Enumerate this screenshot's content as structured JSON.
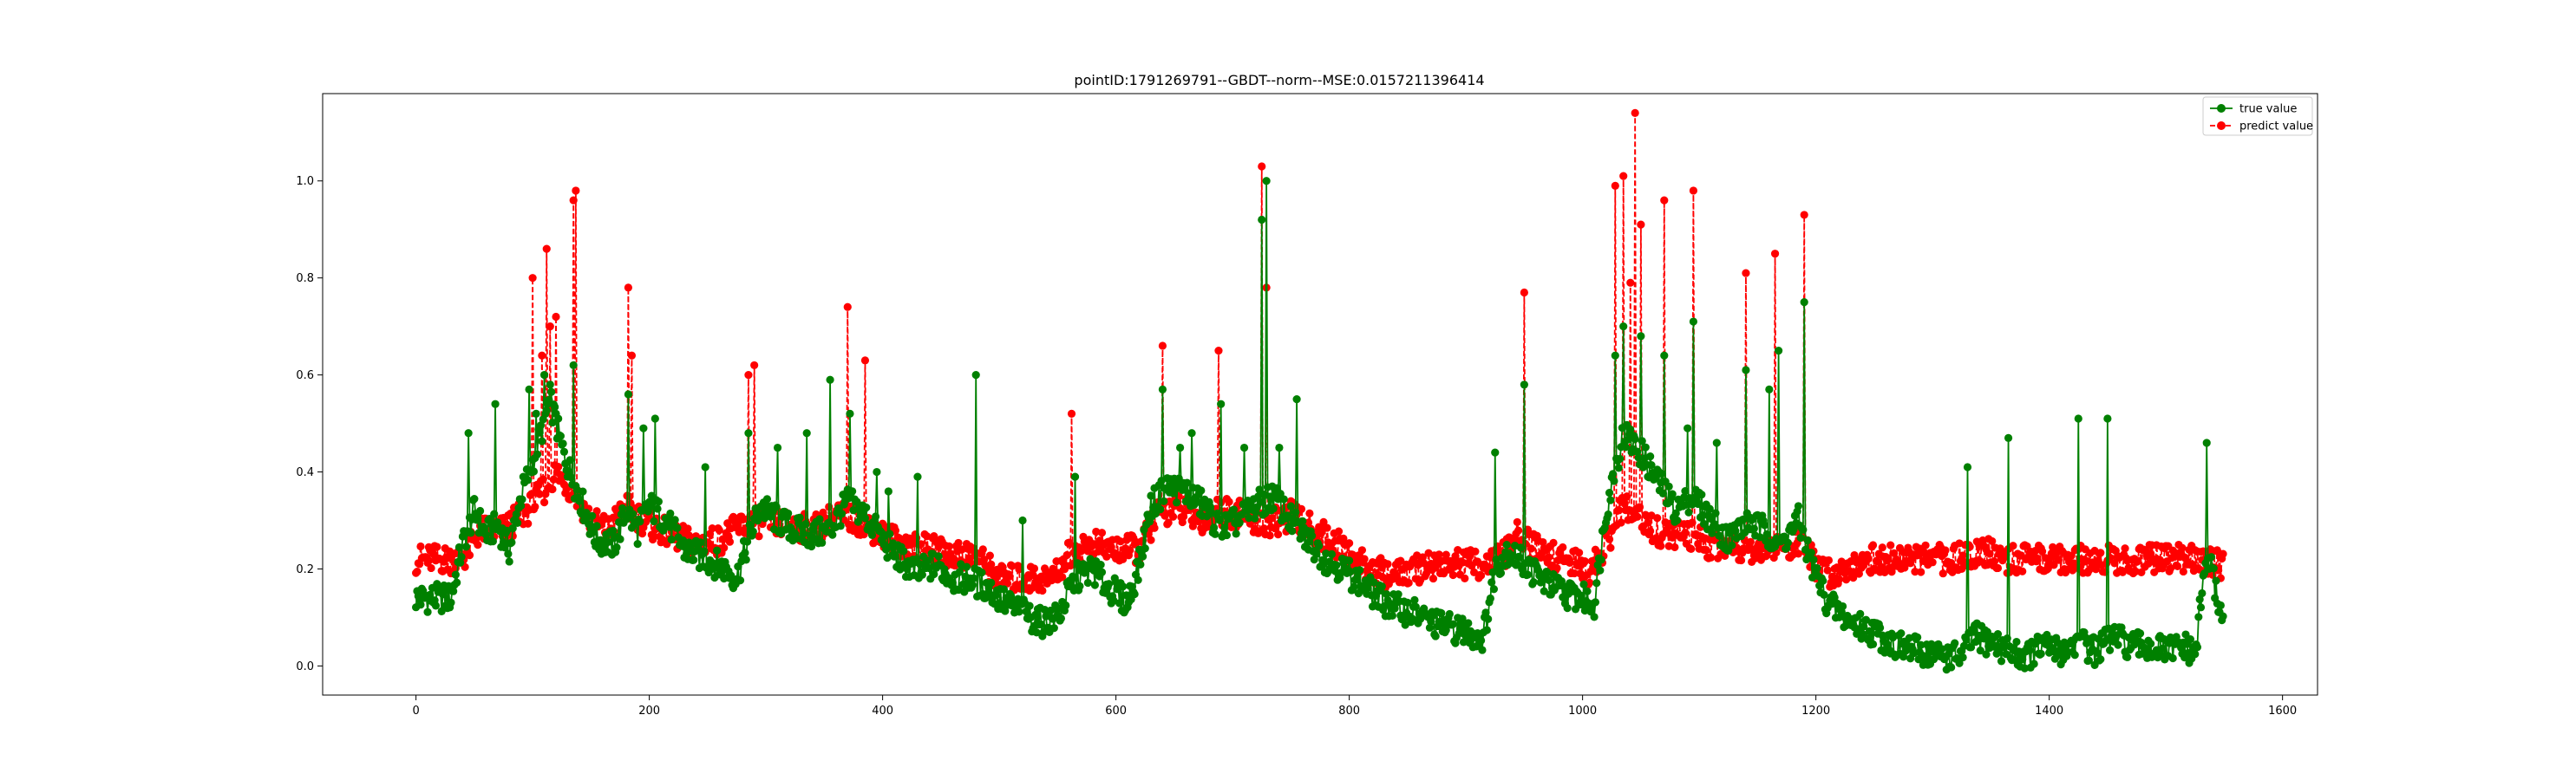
{
  "chart_data": {
    "type": "line",
    "title": "pointID:1791269791--GBDT--norm--MSE:0.0157211396414",
    "xlabel": "",
    "ylabel": "",
    "xlim": [
      -80,
      1630
    ],
    "ylim": [
      -0.06,
      1.18
    ],
    "x_ticks": [
      0,
      200,
      400,
      600,
      800,
      1000,
      1200,
      1400,
      1600
    ],
    "y_ticks": [
      0.0,
      0.2,
      0.4,
      0.6,
      0.8,
      1.0
    ],
    "x_tick_labels": [
      "0",
      "200",
      "400",
      "600",
      "800",
      "1000",
      "1200",
      "1400",
      "1600"
    ],
    "y_tick_labels": [
      "0.0",
      "0.2",
      "0.4",
      "0.6",
      "0.8",
      "1.0"
    ],
    "grid": false,
    "legend_position": "top-right",
    "n_points": 1550,
    "series": [
      {
        "name": "true value",
        "color": "#008000",
        "linestyle": "solid",
        "marker": "circle",
        "keyframes": [
          [
            0,
            0.14
          ],
          [
            30,
            0.14
          ],
          [
            40,
            0.25
          ],
          [
            50,
            0.32
          ],
          [
            60,
            0.27
          ],
          [
            70,
            0.29
          ],
          [
            80,
            0.24
          ],
          [
            90,
            0.35
          ],
          [
            100,
            0.42
          ],
          [
            115,
            0.55
          ],
          [
            125,
            0.45
          ],
          [
            135,
            0.38
          ],
          [
            145,
            0.32
          ],
          [
            155,
            0.26
          ],
          [
            170,
            0.25
          ],
          [
            180,
            0.32
          ],
          [
            190,
            0.28
          ],
          [
            200,
            0.33
          ],
          [
            215,
            0.3
          ],
          [
            230,
            0.24
          ],
          [
            250,
            0.22
          ],
          [
            265,
            0.2
          ],
          [
            275,
            0.18
          ],
          [
            285,
            0.26
          ],
          [
            295,
            0.33
          ],
          [
            310,
            0.3
          ],
          [
            325,
            0.28
          ],
          [
            340,
            0.27
          ],
          [
            355,
            0.28
          ],
          [
            370,
            0.34
          ],
          [
            385,
            0.31
          ],
          [
            400,
            0.26
          ],
          [
            415,
            0.22
          ],
          [
            430,
            0.19
          ],
          [
            445,
            0.21
          ],
          [
            460,
            0.18
          ],
          [
            475,
            0.18
          ],
          [
            490,
            0.16
          ],
          [
            505,
            0.13
          ],
          [
            520,
            0.11
          ],
          [
            535,
            0.09
          ],
          [
            550,
            0.1
          ],
          [
            565,
            0.18
          ],
          [
            580,
            0.2
          ],
          [
            590,
            0.17
          ],
          [
            600,
            0.15
          ],
          [
            610,
            0.13
          ],
          [
            620,
            0.21
          ],
          [
            630,
            0.33
          ],
          [
            645,
            0.37
          ],
          [
            660,
            0.36
          ],
          [
            675,
            0.33
          ],
          [
            690,
            0.28
          ],
          [
            705,
            0.3
          ],
          [
            720,
            0.33
          ],
          [
            735,
            0.35
          ],
          [
            750,
            0.3
          ],
          [
            765,
            0.26
          ],
          [
            780,
            0.22
          ],
          [
            795,
            0.2
          ],
          [
            810,
            0.17
          ],
          [
            825,
            0.14
          ],
          [
            840,
            0.12
          ],
          [
            855,
            0.11
          ],
          [
            870,
            0.09
          ],
          [
            885,
            0.08
          ],
          [
            900,
            0.07
          ],
          [
            915,
            0.06
          ],
          [
            925,
            0.2
          ],
          [
            935,
            0.24
          ],
          [
            945,
            0.22
          ],
          [
            955,
            0.2
          ],
          [
            970,
            0.17
          ],
          [
            985,
            0.15
          ],
          [
            1000,
            0.14
          ],
          [
            1010,
            0.13
          ],
          [
            1020,
            0.32
          ],
          [
            1035,
            0.48
          ],
          [
            1050,
            0.44
          ],
          [
            1065,
            0.38
          ],
          [
            1080,
            0.32
          ],
          [
            1095,
            0.35
          ],
          [
            1110,
            0.3
          ],
          [
            1125,
            0.26
          ],
          [
            1140,
            0.3
          ],
          [
            1155,
            0.28
          ],
          [
            1170,
            0.25
          ],
          [
            1185,
            0.3
          ],
          [
            1195,
            0.22
          ],
          [
            1210,
            0.13
          ],
          [
            1230,
            0.09
          ],
          [
            1250,
            0.07
          ],
          [
            1270,
            0.04
          ],
          [
            1290,
            0.03
          ],
          [
            1310,
            0.02
          ],
          [
            1325,
            0.02
          ],
          [
            1335,
            0.06
          ],
          [
            1350,
            0.05
          ],
          [
            1365,
            0.03
          ],
          [
            1380,
            0.02
          ],
          [
            1395,
            0.04
          ],
          [
            1410,
            0.03
          ],
          [
            1425,
            0.05
          ],
          [
            1440,
            0.03
          ],
          [
            1455,
            0.06
          ],
          [
            1470,
            0.04
          ],
          [
            1485,
            0.04
          ],
          [
            1500,
            0.03
          ],
          [
            1515,
            0.04
          ],
          [
            1525,
            0.02
          ],
          [
            1535,
            0.24
          ],
          [
            1549,
            0.09
          ]
        ],
        "spikes": [
          [
            45,
            0.48
          ],
          [
            68,
            0.54
          ],
          [
            97,
            0.57
          ],
          [
            103,
            0.52
          ],
          [
            110,
            0.6
          ],
          [
            115,
            0.58
          ],
          [
            120,
            0.52
          ],
          [
            135,
            0.62
          ],
          [
            182,
            0.56
          ],
          [
            195,
            0.49
          ],
          [
            205,
            0.51
          ],
          [
            248,
            0.41
          ],
          [
            285,
            0.48
          ],
          [
            310,
            0.45
          ],
          [
            335,
            0.48
          ],
          [
            355,
            0.59
          ],
          [
            372,
            0.52
          ],
          [
            395,
            0.4
          ],
          [
            405,
            0.36
          ],
          [
            430,
            0.39
          ],
          [
            480,
            0.6
          ],
          [
            520,
            0.3
          ],
          [
            565,
            0.39
          ],
          [
            640,
            0.57
          ],
          [
            655,
            0.45
          ],
          [
            665,
            0.48
          ],
          [
            690,
            0.54
          ],
          [
            710,
            0.45
          ],
          [
            725,
            0.92
          ],
          [
            729,
            1.0
          ],
          [
            740,
            0.45
          ],
          [
            755,
            0.55
          ],
          [
            925,
            0.44
          ],
          [
            950,
            0.58
          ],
          [
            1028,
            0.64
          ],
          [
            1035,
            0.7
          ],
          [
            1050,
            0.68
          ],
          [
            1070,
            0.64
          ],
          [
            1090,
            0.49
          ],
          [
            1095,
            0.71
          ],
          [
            1115,
            0.46
          ],
          [
            1140,
            0.61
          ],
          [
            1160,
            0.57
          ],
          [
            1168,
            0.65
          ],
          [
            1190,
            0.75
          ],
          [
            1330,
            0.41
          ],
          [
            1365,
            0.47
          ],
          [
            1425,
            0.51
          ],
          [
            1450,
            0.51
          ],
          [
            1535,
            0.46
          ]
        ]
      },
      {
        "name": "predict value",
        "color": "#ff0000",
        "linestyle": "dashed",
        "marker": "circle",
        "keyframes": [
          [
            0,
            0.22
          ],
          [
            40,
            0.22
          ],
          [
            55,
            0.28
          ],
          [
            75,
            0.28
          ],
          [
            100,
            0.33
          ],
          [
            120,
            0.4
          ],
          [
            135,
            0.36
          ],
          [
            150,
            0.3
          ],
          [
            165,
            0.28
          ],
          [
            180,
            0.33
          ],
          [
            200,
            0.29
          ],
          [
            220,
            0.27
          ],
          [
            240,
            0.25
          ],
          [
            260,
            0.26
          ],
          [
            280,
            0.29
          ],
          [
            300,
            0.3
          ],
          [
            320,
            0.29
          ],
          [
            340,
            0.28
          ],
          [
            360,
            0.31
          ],
          [
            380,
            0.3
          ],
          [
            400,
            0.27
          ],
          [
            420,
            0.25
          ],
          [
            440,
            0.24
          ],
          [
            460,
            0.23
          ],
          [
            480,
            0.23
          ],
          [
            500,
            0.18
          ],
          [
            520,
            0.18
          ],
          [
            545,
            0.18
          ],
          [
            560,
            0.23
          ],
          [
            580,
            0.25
          ],
          [
            600,
            0.24
          ],
          [
            620,
            0.24
          ],
          [
            635,
            0.31
          ],
          [
            650,
            0.33
          ],
          [
            670,
            0.3
          ],
          [
            690,
            0.32
          ],
          [
            710,
            0.31
          ],
          [
            730,
            0.29
          ],
          [
            750,
            0.31
          ],
          [
            770,
            0.28
          ],
          [
            790,
            0.25
          ],
          [
            810,
            0.21
          ],
          [
            830,
            0.19
          ],
          [
            850,
            0.19
          ],
          [
            870,
            0.21
          ],
          [
            890,
            0.21
          ],
          [
            910,
            0.21
          ],
          [
            930,
            0.22
          ],
          [
            945,
            0.27
          ],
          [
            960,
            0.24
          ],
          [
            980,
            0.22
          ],
          [
            995,
            0.21
          ],
          [
            1005,
            0.19
          ],
          [
            1020,
            0.25
          ],
          [
            1035,
            0.33
          ],
          [
            1050,
            0.3
          ],
          [
            1070,
            0.27
          ],
          [
            1090,
            0.27
          ],
          [
            1110,
            0.25
          ],
          [
            1130,
            0.25
          ],
          [
            1150,
            0.24
          ],
          [
            1170,
            0.25
          ],
          [
            1190,
            0.25
          ],
          [
            1200,
            0.2
          ],
          [
            1215,
            0.19
          ],
          [
            1240,
            0.22
          ],
          [
            1280,
            0.22
          ],
          [
            1320,
            0.22
          ],
          [
            1340,
            0.24
          ],
          [
            1360,
            0.22
          ],
          [
            1400,
            0.22
          ],
          [
            1440,
            0.22
          ],
          [
            1480,
            0.22
          ],
          [
            1520,
            0.22
          ],
          [
            1549,
            0.21
          ]
        ],
        "spikes": [
          [
            100,
            0.8
          ],
          [
            108,
            0.64
          ],
          [
            112,
            0.86
          ],
          [
            115,
            0.7
          ],
          [
            120,
            0.72
          ],
          [
            135,
            0.96
          ],
          [
            137,
            0.98
          ],
          [
            182,
            0.78
          ],
          [
            185,
            0.64
          ],
          [
            285,
            0.6
          ],
          [
            290,
            0.62
          ],
          [
            370,
            0.74
          ],
          [
            385,
            0.63
          ],
          [
            562,
            0.52
          ],
          [
            640,
            0.66
          ],
          [
            688,
            0.65
          ],
          [
            725,
            1.03
          ],
          [
            729,
            0.78
          ],
          [
            950,
            0.77
          ],
          [
            1028,
            0.99
          ],
          [
            1035,
            1.01
          ],
          [
            1041,
            0.79
          ],
          [
            1045,
            1.14
          ],
          [
            1050,
            0.91
          ],
          [
            1070,
            0.96
          ],
          [
            1095,
            0.98
          ],
          [
            1140,
            0.81
          ],
          [
            1165,
            0.85
          ],
          [
            1190,
            0.93
          ]
        ]
      }
    ]
  }
}
